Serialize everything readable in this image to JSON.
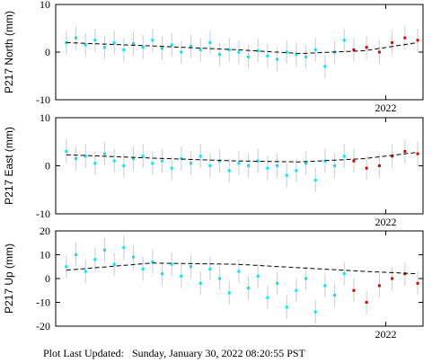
{
  "chart_data": [
    {
      "type": "scatter",
      "ylabel": "P217 North (mm)",
      "xlim": [
        2018.9,
        2022.35
      ],
      "xticks": [
        2022
      ],
      "ylim": [
        -10,
        10
      ],
      "yticks": [
        -10,
        0,
        10
      ],
      "series": [
        {
          "color": "#00e5ee",
          "x": [
            2019.0,
            2019.09,
            2019.18,
            2019.27,
            2019.36,
            2019.45,
            2019.54,
            2019.63,
            2019.72,
            2019.81,
            2019.9,
            2019.99,
            2020.08,
            2020.17,
            2020.26,
            2020.35,
            2020.44,
            2020.53,
            2020.62,
            2020.71,
            2020.8,
            2020.89,
            2020.98,
            2021.07,
            2021.16,
            2021.25,
            2021.34,
            2021.43,
            2021.52,
            2021.61
          ],
          "values": [
            2,
            3,
            1.5,
            2.5,
            1,
            2,
            0.5,
            1.8,
            1,
            2.5,
            0.8,
            1.5,
            0,
            1.2,
            0.5,
            2,
            -0.5,
            0.5,
            0,
            -1,
            0.3,
            -0.8,
            -1.5,
            0,
            -0.5,
            -1,
            0.5,
            -3,
            0,
            2.5
          ],
          "errors": [
            2.5,
            2.5,
            2.5,
            2.5,
            2.5,
            2.5,
            2.5,
            2.5,
            2.5,
            2.5,
            2.5,
            2.5,
            2.5,
            2.5,
            2.5,
            2.5,
            2.5,
            2.5,
            2.5,
            2.5,
            2.5,
            2.5,
            2.5,
            2.5,
            2.5,
            2.5,
            2.5,
            2.5,
            2.5,
            2.5
          ]
        },
        {
          "color": "#dd0000",
          "x": [
            2021.7,
            2021.82,
            2021.94,
            2022.06,
            2022.18,
            2022.3
          ],
          "values": [
            0.5,
            1,
            0,
            2,
            3,
            2.5
          ],
          "errors": [
            2.5,
            2.5,
            2.5,
            2.5,
            2.5,
            2.5
          ]
        }
      ],
      "trend": {
        "color": "#000000",
        "x": [
          2019.0,
          2019.8,
          2020.6,
          2021.2,
          2021.8,
          2022.3
        ],
        "values": [
          2,
          1.3,
          0.5,
          -0.3,
          0.3,
          2
        ]
      }
    },
    {
      "type": "scatter",
      "ylabel": "P217 East (mm)",
      "xlim": [
        2018.9,
        2022.35
      ],
      "xticks": [
        2022
      ],
      "ylim": [
        -10,
        10
      ],
      "yticks": [
        -10,
        0,
        10
      ],
      "series": [
        {
          "color": "#00e5ee",
          "x": [
            2019.0,
            2019.09,
            2019.18,
            2019.27,
            2019.36,
            2019.45,
            2019.54,
            2019.63,
            2019.72,
            2019.81,
            2019.9,
            2019.99,
            2020.08,
            2020.17,
            2020.26,
            2020.35,
            2020.44,
            2020.53,
            2020.62,
            2020.71,
            2020.8,
            2020.89,
            2020.98,
            2021.07,
            2021.16,
            2021.25,
            2021.34,
            2021.43,
            2021.52,
            2021.61
          ],
          "values": [
            3,
            1.5,
            2,
            0.5,
            2.5,
            1,
            0,
            1.5,
            2,
            0.5,
            1,
            -0.5,
            1.5,
            0.5,
            2,
            0,
            1,
            -1,
            0.5,
            0,
            1,
            -0.5,
            0,
            -2,
            -1,
            0.5,
            -3,
            1,
            0,
            2
          ],
          "errors": [
            2.5,
            2.5,
            2.5,
            2.5,
            2.5,
            2.5,
            2.5,
            2.5,
            2.5,
            2.5,
            2.5,
            2.5,
            2.5,
            2.5,
            2.5,
            2.5,
            2.5,
            2.5,
            2.5,
            2.5,
            2.5,
            2.5,
            2.5,
            2.5,
            2.5,
            2.5,
            2.5,
            2.5,
            2.5,
            2.5
          ]
        },
        {
          "color": "#dd0000",
          "x": [
            2021.7,
            2021.82,
            2021.94,
            2022.06,
            2022.18,
            2022.3
          ],
          "values": [
            1,
            -0.5,
            0,
            2,
            3,
            2.5
          ],
          "errors": [
            2.5,
            2.5,
            2.5,
            2.5,
            2.5,
            2.5
          ]
        }
      ],
      "trend": {
        "color": "#000000",
        "x": [
          2019.0,
          2019.8,
          2020.6,
          2021.2,
          2021.8,
          2022.3
        ],
        "values": [
          2.3,
          1.6,
          1.0,
          0.8,
          1.5,
          2.8
        ]
      }
    },
    {
      "type": "scatter",
      "ylabel": "P217 Up (mm)",
      "xlim": [
        2018.9,
        2022.35
      ],
      "xticks": [
        2022
      ],
      "ylim": [
        -20,
        20
      ],
      "yticks": [
        -20,
        -10,
        0,
        10,
        20
      ],
      "series": [
        {
          "color": "#00e5ee",
          "x": [
            2019.0,
            2019.09,
            2019.18,
            2019.27,
            2019.36,
            2019.45,
            2019.54,
            2019.63,
            2019.72,
            2019.81,
            2019.9,
            2019.99,
            2020.08,
            2020.17,
            2020.26,
            2020.35,
            2020.44,
            2020.53,
            2020.62,
            2020.71,
            2020.8,
            2020.89,
            2020.98,
            2021.07,
            2021.16,
            2021.25,
            2021.34,
            2021.43,
            2021.52,
            2021.61
          ],
          "values": [
            5,
            10,
            3,
            8,
            12,
            6,
            13,
            9,
            4,
            7,
            2,
            6,
            1,
            5,
            -2,
            4,
            0,
            -6,
            3,
            -4,
            1,
            -8,
            -2,
            -12,
            -5,
            0,
            -14,
            -3,
            -7,
            2
          ],
          "errors": [
            5,
            5,
            5,
            5,
            5,
            5,
            5,
            5,
            5,
            5,
            5,
            5,
            5,
            5,
            5,
            5,
            5,
            5,
            5,
            5,
            5,
            5,
            5,
            5,
            5,
            5,
            5,
            5,
            5,
            5
          ]
        },
        {
          "color": "#dd0000",
          "x": [
            2021.7,
            2021.82,
            2021.94,
            2022.06,
            2022.18,
            2022.3
          ],
          "values": [
            -5,
            -10,
            -3,
            0,
            2,
            -2
          ],
          "errors": [
            5,
            5,
            5,
            5,
            5,
            5
          ]
        }
      ],
      "trend": {
        "color": "#000000",
        "x": [
          2019.0,
          2019.8,
          2020.6,
          2021.2,
          2021.8,
          2022.3
        ],
        "values": [
          3.5,
          6.5,
          6,
          4.5,
          3,
          2
        ]
      }
    }
  ],
  "footer": "Plot Last Updated:   Sunday, January 30, 2022 08:20:55 PST"
}
